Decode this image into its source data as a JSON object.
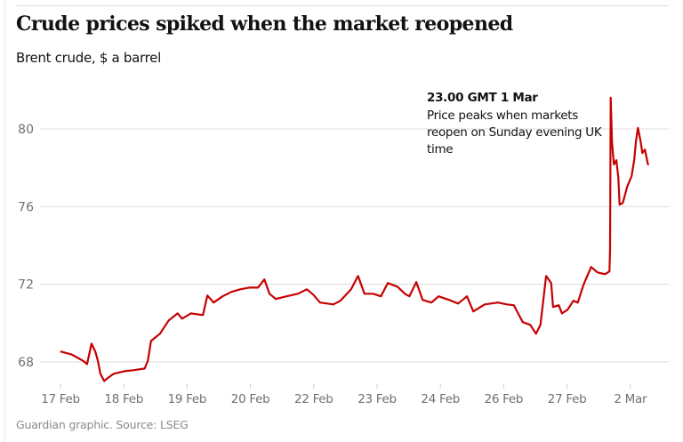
{
  "chart_data": {
    "type": "line",
    "title": "Crude prices spiked when the market reopened",
    "subtitle": "Brent crude, $ a barrel",
    "source": "Guardian graphic. Source: LSEG",
    "xlabel": "",
    "ylabel": "",
    "ylim": [
      67,
      82.5
    ],
    "yticks": [
      68,
      72,
      76,
      80
    ],
    "x_unit": "trading-session index (0 = 17 Feb tick, 1 per labelled tick)",
    "xlim": [
      -0.3,
      9.6
    ],
    "xtick_labels": [
      "17 Feb",
      "18 Feb",
      "19 Feb",
      "20 Feb",
      "22 Feb",
      "23 Feb",
      "24 Feb",
      "26 Feb",
      "27 Feb",
      "2 Mar"
    ],
    "grid": "horizontal",
    "line_color": "#c70000",
    "annotation": {
      "title": "23.00 GMT 1 Mar",
      "lines": [
        "Price peaks when markets",
        "reopen on Sunday evening UK",
        "time"
      ],
      "x": 8.69,
      "y": 81.6
    },
    "series": [
      {
        "name": "Brent crude",
        "x": [
          0.01,
          0.17,
          0.35,
          0.42,
          0.49,
          0.55,
          0.59,
          0.63,
          0.69,
          0.76,
          0.84,
          1.01,
          1.15,
          1.33,
          1.38,
          1.43,
          1.57,
          1.71,
          1.85,
          1.92,
          2.06,
          2.25,
          2.32,
          2.42,
          2.56,
          2.7,
          2.84,
          2.98,
          3.12,
          3.22,
          3.3,
          3.4,
          3.57,
          3.75,
          3.89,
          3.99,
          4.1,
          4.31,
          4.42,
          4.59,
          4.7,
          4.8,
          4.94,
          5.06,
          5.17,
          5.32,
          5.44,
          5.51,
          5.62,
          5.72,
          5.86,
          5.97,
          6.14,
          6.28,
          6.42,
          6.52,
          6.7,
          6.91,
          7.05,
          7.16,
          7.3,
          7.42,
          7.51,
          7.58,
          7.67,
          7.75,
          7.78,
          7.87,
          7.92,
          8.01,
          8.1,
          8.17,
          8.26,
          8.38,
          8.48,
          8.6,
          8.67,
          8.68,
          8.69,
          8.71,
          8.74,
          8.78,
          8.81,
          8.83,
          8.88,
          8.95,
          9.02,
          9.06,
          9.09,
          9.12,
          9.16,
          9.19,
          9.23,
          9.27,
          9.28
        ],
        "y": [
          68.53,
          68.39,
          68.07,
          67.89,
          68.94,
          68.53,
          68.07,
          67.39,
          67.02,
          67.2,
          67.39,
          67.52,
          67.57,
          67.66,
          68.07,
          69.08,
          69.45,
          70.14,
          70.5,
          70.23,
          70.5,
          70.41,
          71.42,
          71.06,
          71.38,
          71.61,
          71.74,
          71.83,
          71.83,
          72.25,
          71.51,
          71.24,
          71.38,
          71.51,
          71.74,
          71.47,
          71.06,
          70.96,
          71.15,
          71.74,
          72.43,
          71.51,
          71.51,
          71.38,
          72.06,
          71.88,
          71.51,
          71.38,
          72.11,
          71.19,
          71.06,
          71.38,
          71.19,
          71.01,
          71.38,
          70.6,
          70.96,
          71.06,
          70.96,
          70.92,
          70.05,
          69.91,
          69.45,
          69.91,
          72.43,
          72.06,
          70.83,
          70.92,
          70.5,
          70.69,
          71.15,
          71.06,
          71.97,
          72.89,
          72.61,
          72.52,
          72.66,
          73.81,
          81.61,
          79.31,
          78.17,
          78.39,
          77.48,
          76.1,
          76.19,
          77.02,
          77.57,
          78.39,
          79.4,
          80.05,
          79.4,
          78.76,
          78.94,
          78.3,
          78.17
        ]
      }
    ]
  }
}
